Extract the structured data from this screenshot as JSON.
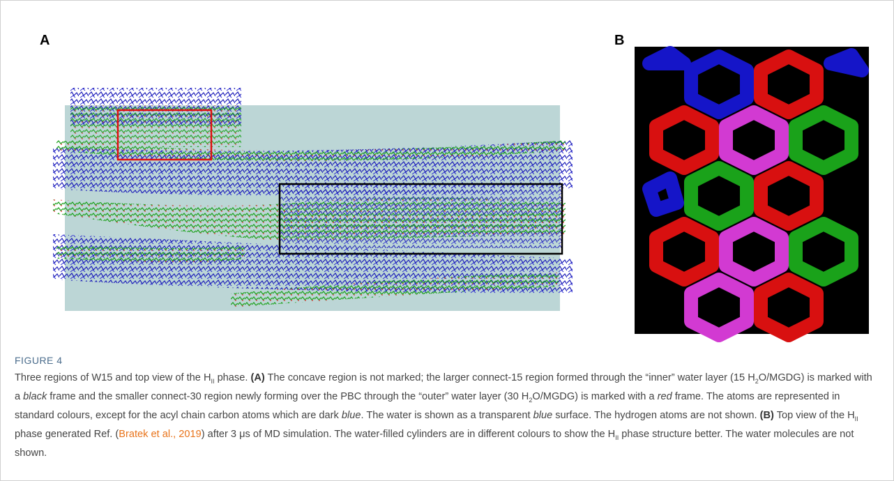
{
  "panels": {
    "a_label": "A",
    "b_label": "B"
  },
  "figure": {
    "label": "FIGURE 4",
    "caption": [
      "Three regions of W15 and top view of the H",
      "II",
      " phase. ",
      "(A)",
      " The concave region is not marked; the larger connect-15 region formed through the “inner” water layer (15 H",
      "2",
      "O/MGDG) is marked with a ",
      "black",
      " frame and the smaller connect-30 region newly forming over the PBC through the “outer” water layer (30 H",
      "2",
      "O/MGDG) is marked with a ",
      "red",
      " frame. The atoms are represented in standard colours, except for the acyl chain carbon atoms which are dark ",
      "blue",
      ". The water is shown as a transparent ",
      "blue",
      " surface. The hydrogen atoms are not shown. ",
      "(B)",
      " Top view of the H",
      "II",
      " phase generated Ref. (",
      "Bratek et al., 2019",
      ") after 3 μs of MD simulation. The water-filled cylinders are in different colours to show the H",
      "II",
      " phase structure better. The water molecules are not shown."
    ]
  }
}
